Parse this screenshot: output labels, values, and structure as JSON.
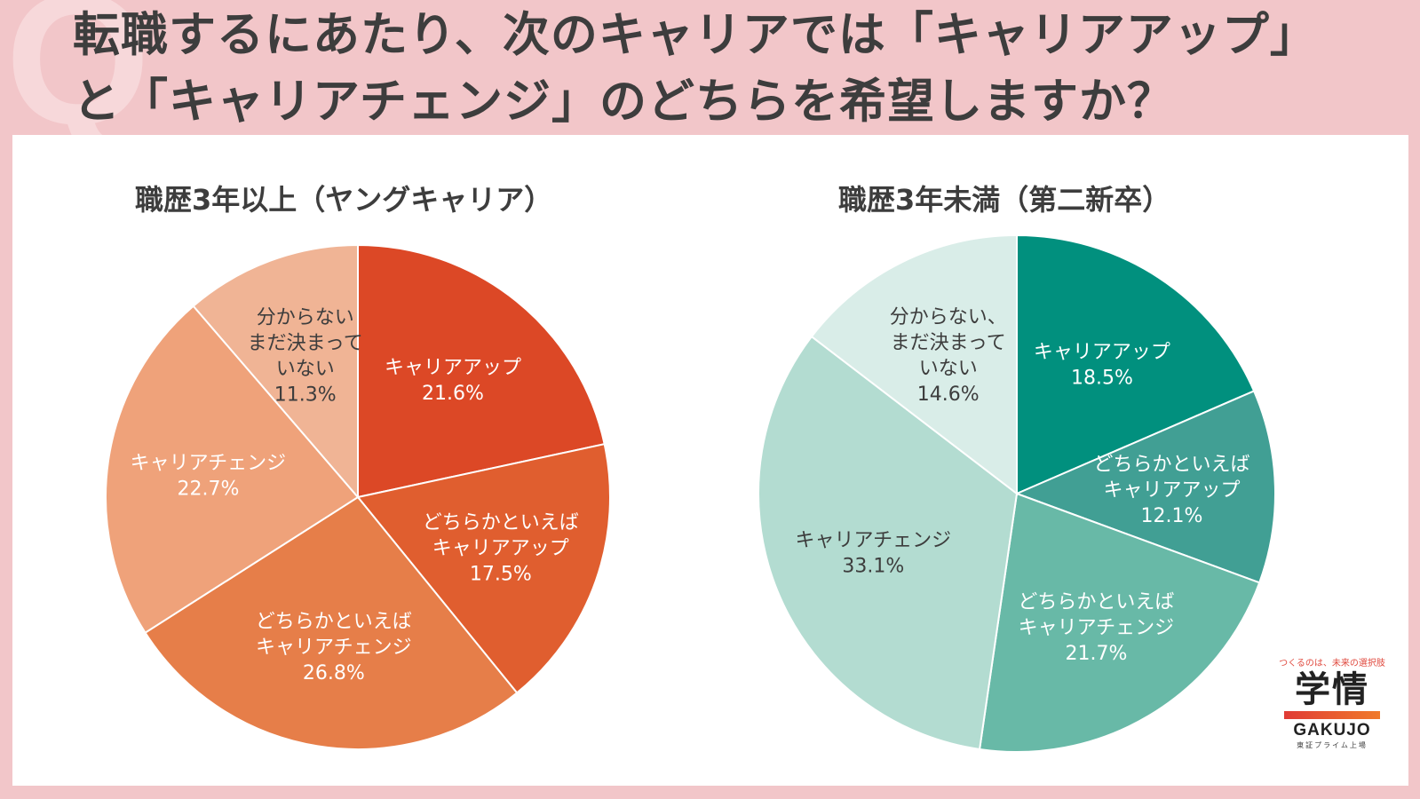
{
  "title": {
    "line1": "転職するにあたり、次のキャリアでは「キャリアアップ」",
    "line2": "と「キャリアチェンジ」のどちらを希望しますか？",
    "q_mark": "Q"
  },
  "logo": {
    "tagline": "つくるのは、未来の選択肢",
    "kanji": "学情",
    "romaji": "GAKUJO",
    "listing": "東証プライム上場"
  },
  "chart_data": [
    {
      "type": "pie",
      "title": "職歴3年以上（ヤングキャリア）",
      "slices": [
        {
          "label": [
            "キャリアアップ"
          ],
          "value": 21.6,
          "display": "21.6%",
          "color": "#dc4826",
          "text": "#ffffff"
        },
        {
          "label": [
            "どちらかといえば",
            "キャリアアップ"
          ],
          "value": 17.5,
          "display": "17.5%",
          "color": "#e05e2f",
          "text": "#ffffff"
        },
        {
          "label": [
            "どちらかといえば",
            "キャリアチェンジ"
          ],
          "value": 26.8,
          "display": "26.8%",
          "color": "#e67e49",
          "text": "#ffffff"
        },
        {
          "label": [
            "キャリアチェンジ"
          ],
          "value": 22.7,
          "display": "22.7%",
          "color": "#efa27a",
          "text": "#ffffff"
        },
        {
          "label": [
            "分からない",
            "まだ決まって",
            "いない"
          ],
          "value": 11.3,
          "display": "11.3%",
          "color": "#f0b495",
          "text": "#3d3d3d"
        }
      ]
    },
    {
      "type": "pie",
      "title": "職歴3年未満（第二新卒）",
      "slices": [
        {
          "label": [
            "キャリアアップ"
          ],
          "value": 18.5,
          "display": "18.5%",
          "color": "#01907e",
          "text": "#ffffff"
        },
        {
          "label": [
            "どちらかといえば",
            "キャリアアップ"
          ],
          "value": 12.1,
          "display": "12.1%",
          "color": "#419f94",
          "text": "#ffffff"
        },
        {
          "label": [
            "どちらかといえば",
            "キャリアチェンジ"
          ],
          "value": 21.7,
          "display": "21.7%",
          "color": "#68b9a7",
          "text": "#ffffff"
        },
        {
          "label": [
            "キャリアチェンジ"
          ],
          "value": 33.1,
          "display": "33.1%",
          "color": "#b3dcd1",
          "text": "#3d3d3d"
        },
        {
          "label": [
            "分からない、",
            "まだ決まって",
            "いない"
          ],
          "value": 14.6,
          "display": "14.6%",
          "color": "#d9ede8",
          "text": "#3d3d3d"
        }
      ]
    }
  ]
}
